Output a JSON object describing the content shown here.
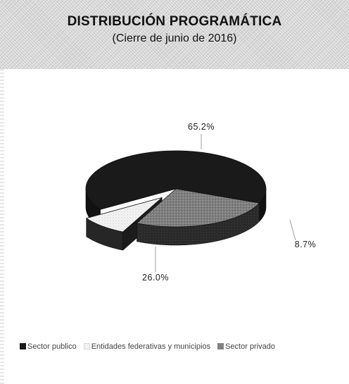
{
  "chart_data": {
    "type": "pie",
    "style": "3d-exploded",
    "title": "DISTRIBUCIÓN PROGRAMÁTICA",
    "subtitle": "(Cierre de junio de 2016)",
    "slices": [
      {
        "name": "Sector publico",
        "value": 65.2,
        "label": "65.2%",
        "color": "#1a1a1a",
        "pattern": "solid"
      },
      {
        "name": "Entidades federativas y municipios",
        "value": 8.7,
        "label": "8.7%",
        "color": "#f2f2f2",
        "pattern": "dotted-light"
      },
      {
        "name": "Sector privado",
        "value": 26.0,
        "label": "26.0%",
        "color": "#7a7a7a",
        "pattern": "speckled-gray"
      }
    ],
    "legend_position": "bottom",
    "data_labels": "outside-with-leader-lines"
  }
}
